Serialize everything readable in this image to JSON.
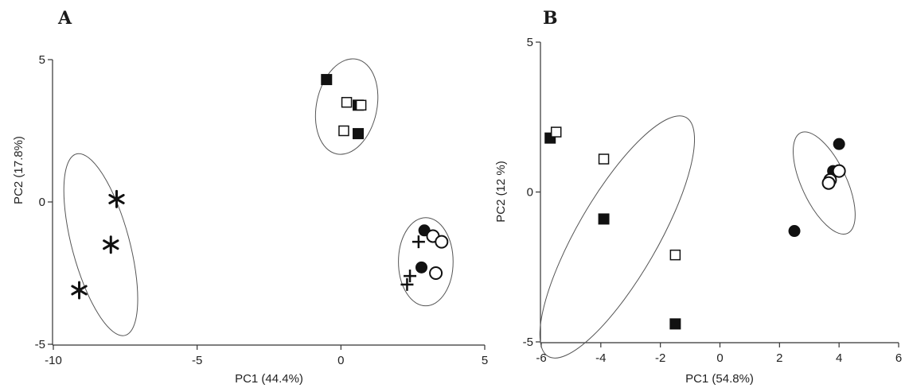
{
  "chart_data": [
    {
      "type": "scatter",
      "panel_label": "A",
      "xlabel": "PC1 (44.4%)",
      "ylabel": "PC2 (17.8%)",
      "xlim": [
        -10,
        5
      ],
      "ylim": [
        -5,
        5
      ],
      "xticks": [
        -10,
        -5,
        0,
        5
      ],
      "yticks": [
        -5,
        0,
        5
      ],
      "xtick_labels": [
        "-10",
        "-5",
        "0",
        "5"
      ],
      "ytick_labels": [
        "-5",
        "0",
        "5"
      ],
      "grid": false,
      "series": [
        {
          "marker": "asterisk",
          "points": [
            [
              -7.8,
              0.1
            ],
            [
              -8.0,
              -1.5
            ],
            [
              -9.1,
              -3.1
            ]
          ]
        },
        {
          "marker": "filled-square",
          "points": [
            [
              -0.5,
              4.3
            ],
            [
              0.6,
              3.4
            ],
            [
              0.6,
              2.4
            ]
          ]
        },
        {
          "marker": "open-square",
          "points": [
            [
              0.2,
              3.5
            ],
            [
              0.7,
              3.4
            ],
            [
              0.1,
              2.5
            ]
          ]
        },
        {
          "marker": "plus",
          "points": [
            [
              2.7,
              -1.4
            ],
            [
              2.4,
              -2.6
            ],
            [
              2.3,
              -2.9
            ]
          ]
        },
        {
          "marker": "filled-circle",
          "points": [
            [
              2.9,
              -1.0
            ],
            [
              2.8,
              -2.3
            ]
          ]
        },
        {
          "marker": "open-circle",
          "points": [
            [
              3.2,
              -1.2
            ],
            [
              3.5,
              -1.4
            ],
            [
              3.3,
              -2.5
            ]
          ]
        }
      ],
      "ellipses": [
        {
          "center": [
            -8.35,
            -1.5
          ],
          "rx": 1.0,
          "ry": 3.3,
          "angle": 15
        },
        {
          "center": [
            0.2,
            3.35
          ],
          "rx": 1.05,
          "ry": 1.7,
          "angle": -12
        },
        {
          "center": [
            2.95,
            -2.1
          ],
          "rx": 0.95,
          "ry": 1.55,
          "angle": 0
        }
      ]
    },
    {
      "type": "scatter",
      "panel_label": "B",
      "xlabel": "PC1 (54.8%)",
      "ylabel": "PC2 (12 %)",
      "xlim": [
        -6,
        6
      ],
      "ylim": [
        -5,
        5
      ],
      "xticks": [
        -6,
        -4,
        -2,
        0,
        2,
        4,
        6
      ],
      "yticks": [
        -5,
        0,
        5
      ],
      "xtick_labels": [
        "-6",
        "-4",
        "-2",
        "0",
        "2",
        "4",
        "6"
      ],
      "ytick_labels": [
        "-5",
        "0",
        "5"
      ],
      "grid": false,
      "series": [
        {
          "marker": "filled-square",
          "points": [
            [
              -5.7,
              1.8
            ],
            [
              -3.9,
              -0.9
            ],
            [
              -1.5,
              -4.4
            ]
          ]
        },
        {
          "marker": "open-square",
          "points": [
            [
              -5.5,
              2.0
            ],
            [
              -3.9,
              1.1
            ],
            [
              -1.5,
              -2.1
            ]
          ]
        },
        {
          "marker": "filled-circle",
          "points": [
            [
              4.0,
              1.6
            ],
            [
              3.8,
              0.7
            ],
            [
              2.5,
              -1.3
            ]
          ]
        },
        {
          "marker": "open-circle",
          "points": [
            [
              4.0,
              0.7
            ],
            [
              3.7,
              0.4
            ],
            [
              3.65,
              0.3
            ]
          ]
        }
      ],
      "ellipses": [
        {
          "center": [
            -3.45,
            -1.5
          ],
          "rx": 1.35,
          "ry": 4.6,
          "angle": -30
        },
        {
          "center": [
            3.5,
            0.3
          ],
          "rx": 0.75,
          "ry": 1.85,
          "angle": 25
        }
      ]
    }
  ]
}
